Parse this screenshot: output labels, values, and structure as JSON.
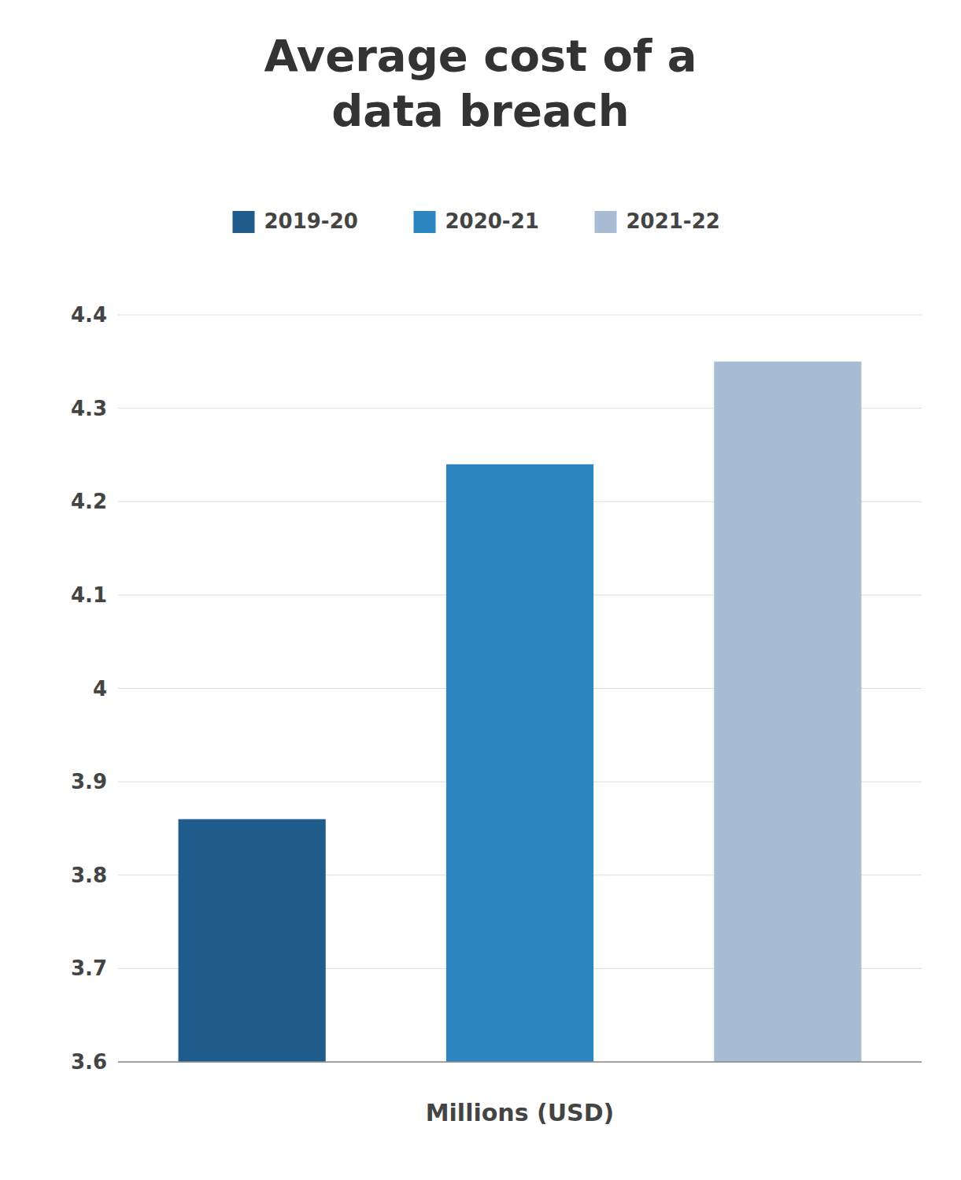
{
  "chart_data": {
    "type": "bar",
    "title": "Average cost of a\ndata breach",
    "categories": [
      "2019-20",
      "2020-21",
      "2021-22"
    ],
    "values": [
      3.86,
      4.24,
      4.35
    ],
    "colors": [
      "#1f5c8b",
      "#2e86c1",
      "#a8bdd4"
    ],
    "xlabel": "Millions (USD)",
    "ylim": [
      3.6,
      4.4
    ],
    "yticks": [
      3.6,
      3.7,
      3.8,
      3.9,
      4,
      4.1,
      4.2,
      4.3,
      4.4
    ],
    "grid": true,
    "legend": "top",
    "tick_labels": "y"
  }
}
